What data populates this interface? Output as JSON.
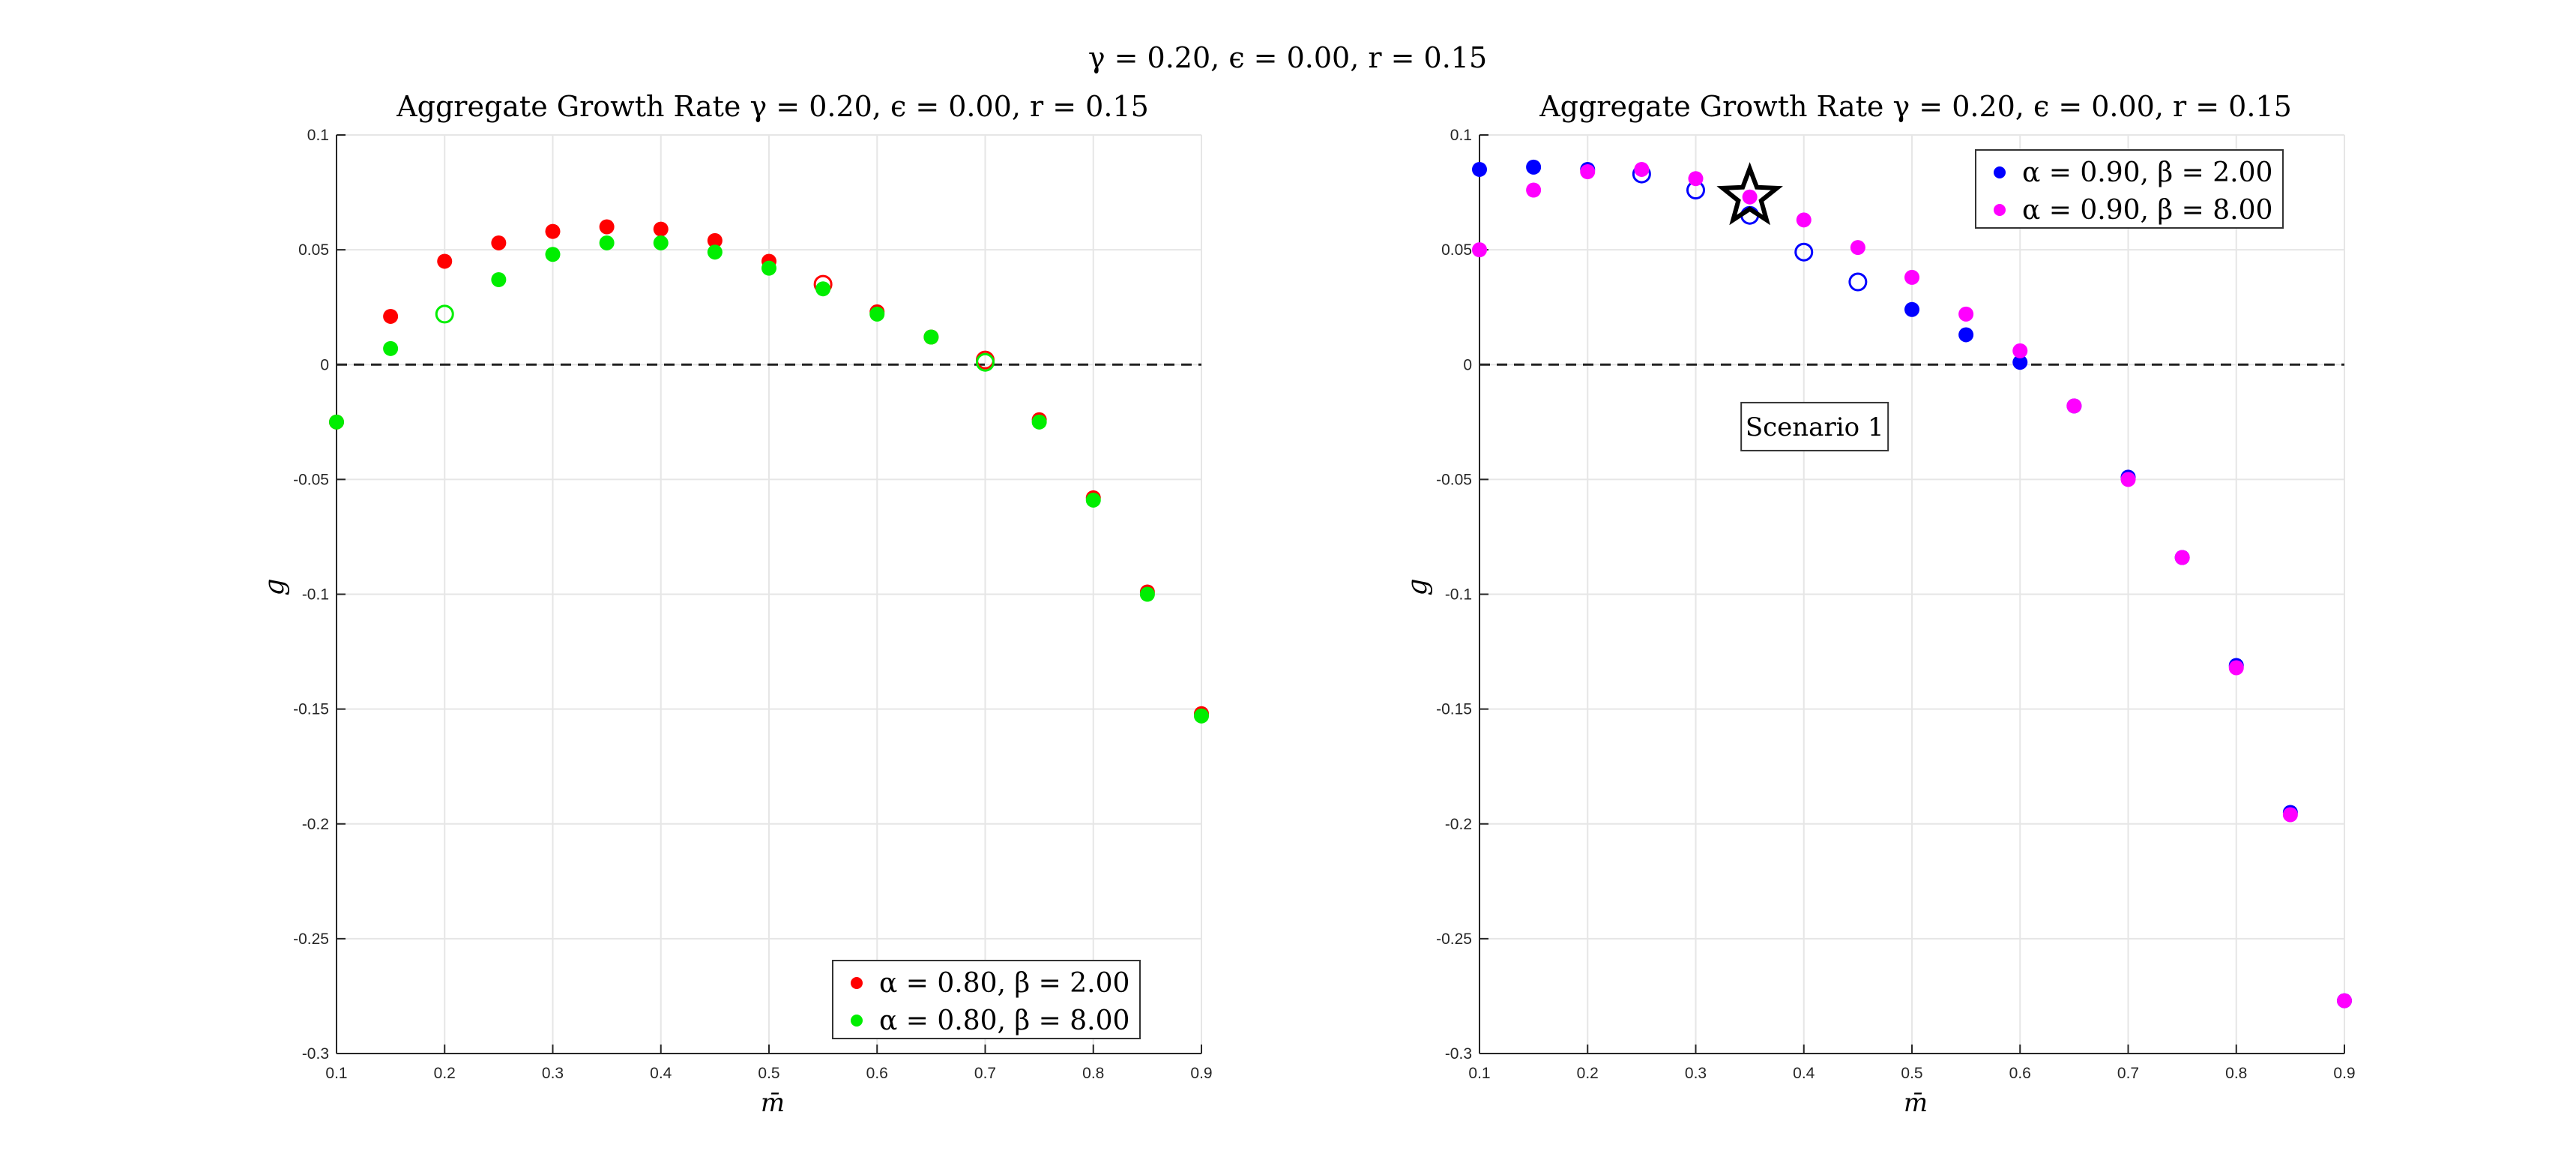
{
  "suptitle": "γ = 0.20, ϵ = 0.00, r = 0.15",
  "chart_data": [
    {
      "type": "scatter",
      "title": "Aggregate Growth Rate γ = 0.20, ϵ = 0.00, r = 0.15",
      "xlabel": "m̄",
      "ylabel": "g",
      "xlim": [
        0.1,
        0.9
      ],
      "ylim": [
        -0.3,
        0.1
      ],
      "xticks": [
        0.1,
        0.2,
        0.3,
        0.4,
        0.5,
        0.6,
        0.7,
        0.8,
        0.9
      ],
      "yticks": [
        -0.3,
        -0.25,
        -0.2,
        -0.15,
        -0.1,
        -0.05,
        0,
        0.05,
        0.1
      ],
      "xtick_labels": [
        "0.1",
        "0.2",
        "0.3",
        "0.4",
        "0.5",
        "0.6",
        "0.7",
        "0.8",
        "0.9"
      ],
      "ytick_labels": [
        "-0.3",
        "-0.25",
        "-0.2",
        "-0.15",
        "-0.1",
        "-0.05",
        "0",
        "0.05",
        "0.1"
      ],
      "grid": true,
      "zero_line": 0,
      "legend_position": "bottom-right",
      "x": [
        0.1,
        0.15,
        0.2,
        0.25,
        0.3,
        0.35,
        0.4,
        0.45,
        0.5,
        0.55,
        0.6,
        0.65,
        0.7,
        0.75,
        0.8,
        0.85,
        0.9
      ],
      "series": [
        {
          "name": "α = 0.80, β = 2.00",
          "color": "#ff0000",
          "y": [
            -0.025,
            0.021,
            0.045,
            0.053,
            0.058,
            0.06,
            0.059,
            0.054,
            0.045,
            0.035,
            0.023,
            0.012,
            0.002,
            -0.024,
            -0.058,
            -0.099,
            -0.152
          ],
          "hollow": [
            false,
            false,
            false,
            false,
            false,
            false,
            false,
            false,
            false,
            true,
            false,
            false,
            true,
            false,
            false,
            false,
            false
          ]
        },
        {
          "name": "α = 0.80, β = 8.00",
          "color": "#00ee00",
          "y": [
            -0.025,
            0.007,
            0.022,
            0.037,
            0.048,
            0.053,
            0.053,
            0.049,
            0.042,
            0.033,
            0.022,
            0.012,
            0.001,
            -0.025,
            -0.059,
            -0.1,
            -0.153
          ],
          "hollow": [
            false,
            false,
            true,
            false,
            false,
            false,
            false,
            false,
            false,
            false,
            false,
            false,
            true,
            false,
            false,
            false,
            false
          ]
        }
      ],
      "annotations": []
    },
    {
      "type": "scatter",
      "title": "Aggregate Growth Rate γ = 0.20, ϵ = 0.00, r = 0.15",
      "xlabel": "m̄",
      "ylabel": "g",
      "xlim": [
        0.1,
        0.9
      ],
      "ylim": [
        -0.3,
        0.1
      ],
      "xticks": [
        0.1,
        0.2,
        0.3,
        0.4,
        0.5,
        0.6,
        0.7,
        0.8,
        0.9
      ],
      "yticks": [
        -0.3,
        -0.25,
        -0.2,
        -0.15,
        -0.1,
        -0.05,
        0,
        0.05,
        0.1
      ],
      "xtick_labels": [
        "0.1",
        "0.2",
        "0.3",
        "0.4",
        "0.5",
        "0.6",
        "0.7",
        "0.8",
        "0.9"
      ],
      "ytick_labels": [
        "-0.3",
        "-0.25",
        "-0.2",
        "-0.15",
        "-0.1",
        "-0.05",
        "0",
        "0.05",
        "0.1"
      ],
      "grid": true,
      "zero_line": 0,
      "legend_position": "top-right",
      "x": [
        0.1,
        0.15,
        0.2,
        0.25,
        0.3,
        0.35,
        0.4,
        0.45,
        0.5,
        0.55,
        0.6,
        0.65,
        0.7,
        0.75,
        0.8,
        0.85,
        0.9
      ],
      "series": [
        {
          "name": "α = 0.90, β = 2.00",
          "color": "#0000ff",
          "y": [
            0.085,
            0.086,
            0.085,
            0.083,
            0.076,
            0.065,
            0.049,
            0.036,
            0.024,
            0.013,
            0.001,
            -0.018,
            -0.049,
            -0.084,
            -0.131,
            -0.195,
            -0.277
          ],
          "hollow": [
            false,
            false,
            false,
            true,
            true,
            true,
            true,
            true,
            false,
            false,
            false,
            false,
            false,
            false,
            false,
            false,
            false
          ]
        },
        {
          "name": "α = 0.90, β = 8.00",
          "color": "#ff00ff",
          "y": [
            0.05,
            0.076,
            0.084,
            0.085,
            0.081,
            0.073,
            0.063,
            0.051,
            0.038,
            0.022,
            0.006,
            -0.018,
            -0.05,
            -0.084,
            -0.132,
            -0.196,
            -0.277
          ],
          "hollow": [
            false,
            false,
            false,
            false,
            false,
            false,
            false,
            false,
            false,
            false,
            false,
            false,
            false,
            false,
            false,
            false,
            false
          ]
        }
      ],
      "star_marker": {
        "x": 0.35,
        "y": 0.073
      },
      "annotations": [
        {
          "text": "Scenario 1",
          "x": 0.41,
          "y": -0.027
        }
      ]
    }
  ]
}
